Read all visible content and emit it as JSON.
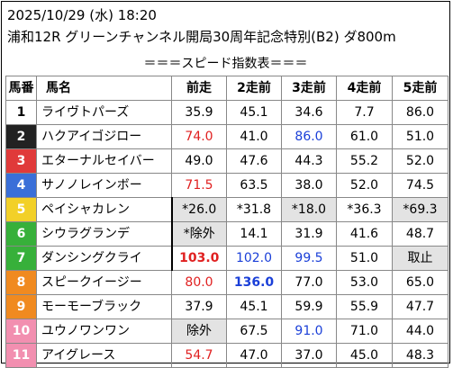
{
  "header": {
    "datetime": "2025/10/29 (水) 18:20",
    "race": "浦和12R グリーンチャンネル開局30周年記念特別(B2) ダ800m"
  },
  "subtitle": "＝＝＝スピード指数表＝＝＝",
  "columns": [
    "馬番",
    "馬名",
    "前走",
    "2走前",
    "3走前",
    "4走前",
    "5走前"
  ],
  "colors": {
    "waku": [
      "#ffffff",
      "#222222",
      "#e03a3a",
      "#3a6fd8",
      "#f2d028",
      "#37b03a",
      "#f08a20",
      "#f28fb0"
    ],
    "red": "#e02020",
    "blue": "#1a3fd8",
    "gray_cell": "#e3e3e3"
  },
  "rows": [
    {
      "num": "1",
      "name": "ライヴトパーズ",
      "cells": [
        "35.9",
        "45.1",
        "34.6",
        "7.7",
        "86.0"
      ]
    },
    {
      "num": "2",
      "name": "ハクアイゴジロー",
      "cells": [
        "74.0",
        "41.0",
        "86.0",
        "61.0",
        "51.0"
      ]
    },
    {
      "num": "3",
      "name": "エターナルセイバー",
      "cells": [
        "49.0",
        "47.6",
        "44.3",
        "55.2",
        "52.0"
      ]
    },
    {
      "num": "4",
      "name": "サノノレインボー",
      "cells": [
        "71.5",
        "63.5",
        "38.0",
        "52.0",
        "74.5"
      ]
    },
    {
      "num": "5",
      "name": "ペイシャカレン",
      "cells": [
        "*26.0",
        "*31.8",
        "*18.0",
        "*36.3",
        "*69.3"
      ]
    },
    {
      "num": "6",
      "name": "シウラグランデ",
      "cells": [
        "*除外",
        "14.1",
        "31.9",
        "41.6",
        "48.7"
      ]
    },
    {
      "num": "7",
      "name": "ダンシングクライ",
      "cells": [
        "103.0",
        "102.0",
        "99.5",
        "51.0",
        "取止"
      ]
    },
    {
      "num": "8",
      "name": "スピークイージー",
      "cells": [
        "80.0",
        "136.0",
        "77.0",
        "53.0",
        "65.0"
      ]
    },
    {
      "num": "9",
      "name": "モーモーブラック",
      "cells": [
        "37.9",
        "45.1",
        "59.9",
        "55.9",
        "47.7"
      ]
    },
    {
      "num": "10",
      "name": "ユウノワンワン",
      "cells": [
        "除外",
        "67.5",
        "91.0",
        "71.0",
        "44.0"
      ]
    },
    {
      "num": "11",
      "name": "アイグレース",
      "cells": [
        "54.7",
        "47.0",
        "37.0",
        "45.0",
        "48.3"
      ]
    }
  ]
}
